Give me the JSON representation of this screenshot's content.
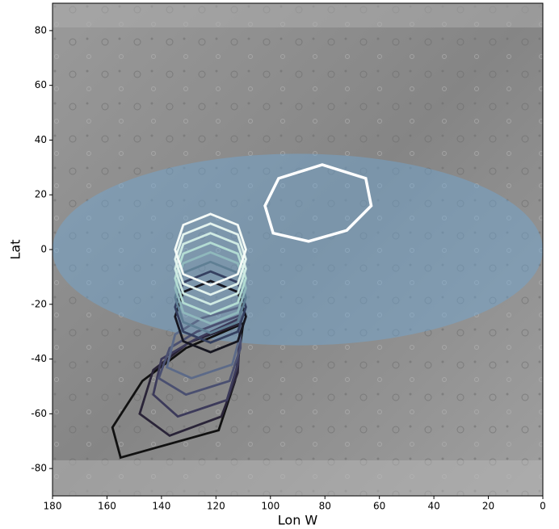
{
  "chart_data": {
    "type": "polygon",
    "xlabel": "Lon W",
    "ylabel": "Lat",
    "xlim": [
      180,
      0
    ],
    "ylim": [
      -90,
      90
    ],
    "xticks": [
      180,
      160,
      140,
      120,
      100,
      80,
      60,
      40,
      20,
      0
    ],
    "yticks": [
      -80,
      -60,
      -40,
      -20,
      0,
      20,
      40,
      60,
      80
    ],
    "ellipse": {
      "center": [
        90,
        0
      ],
      "width": 180,
      "height": 70,
      "color": "#6fa8d6",
      "opacity": 0.45
    },
    "polygons": [
      {
        "color": "#ffffff",
        "x": [
          81,
          65,
          63,
          72,
          86,
          99,
          102,
          97
        ],
        "y": [
          31,
          26,
          16,
          7,
          3,
          6,
          16,
          26
        ]
      },
      {
        "color": "#f4faf7",
        "x": [
          122,
          112,
          109,
          112,
          122,
          132,
          135,
          132
        ],
        "y": [
          13,
          9,
          0,
          -9,
          -13,
          -9,
          0,
          9
        ]
      },
      {
        "color": "#e3f3ee",
        "x": [
          122,
          112,
          109,
          112,
          122,
          132,
          135,
          132
        ],
        "y": [
          9.5,
          5.5,
          -3.5,
          -12.5,
          -16.5,
          -12.5,
          -3.5,
          5.5
        ]
      },
      {
        "color": "#cfeae3",
        "x": [
          122,
          112,
          109,
          112,
          122,
          132,
          135,
          132
        ],
        "y": [
          6,
          2,
          -7,
          -16,
          -20,
          -16,
          -7,
          2
        ]
      },
      {
        "color": "#b3dcd3",
        "x": [
          122,
          112,
          109,
          112,
          122,
          132,
          135,
          132
        ],
        "y": [
          2.5,
          -1.5,
          -10.5,
          -19.5,
          -23.5,
          -19.5,
          -10.5,
          -1.5
        ]
      },
      {
        "color": "#8fb8bc",
        "x": [
          122,
          112,
          109,
          112,
          122,
          132,
          135,
          132
        ],
        "y": [
          -1,
          -5,
          -14,
          -23,
          -27,
          -23,
          -14,
          -5
        ]
      },
      {
        "color": "#5f7f94",
        "x": [
          122,
          112,
          109,
          112,
          122,
          132,
          135,
          132
        ],
        "y": [
          -4.5,
          -8.5,
          -17.5,
          -26.5,
          -30.5,
          -26.5,
          -17.5,
          -8.5
        ]
      },
      {
        "color": "#354060",
        "x": [
          122,
          112,
          109,
          112,
          122,
          132,
          135,
          132
        ],
        "y": [
          -8,
          -12,
          -21,
          -30,
          -34,
          -30,
          -21,
          -12
        ]
      },
      {
        "color": "#161620",
        "x": [
          122,
          112,
          109,
          112,
          122,
          132,
          135,
          132
        ],
        "y": [
          -11.5,
          -15.5,
          -24.5,
          -33.5,
          -37.5,
          -33.5,
          -24.5,
          -15.5
        ]
      },
      {
        "color": "#5c6a88",
        "x": [
          138,
          129,
          114,
          111,
          111,
          125,
          135
        ],
        "y": [
          -43,
          -47,
          -42,
          -31,
          -21,
          -25,
          -31
        ]
      },
      {
        "color": "#4a4f70",
        "x": [
          141,
          131,
          115,
          111,
          111,
          127,
          137
        ],
        "y": [
          -47,
          -53,
          -48,
          -36,
          -24,
          -30,
          -36
        ]
      },
      {
        "color": "#3c3a5a",
        "x": [
          143,
          134,
          116,
          112,
          111,
          128,
          140
        ],
        "y": [
          -53,
          -61,
          -55,
          -42,
          -25,
          -33,
          -40
        ]
      },
      {
        "color": "#2a2438",
        "x": [
          148,
          137,
          118,
          112,
          111,
          130,
          143
        ],
        "y": [
          -60,
          -68,
          -61,
          -45,
          -27,
          -34,
          -44
        ]
      },
      {
        "color": "#111111",
        "x": [
          158,
          155,
          119,
          113,
          110,
          131,
          147
        ],
        "y": [
          -65,
          -76,
          -66,
          -48,
          -27,
          -36,
          -48
        ]
      }
    ]
  }
}
